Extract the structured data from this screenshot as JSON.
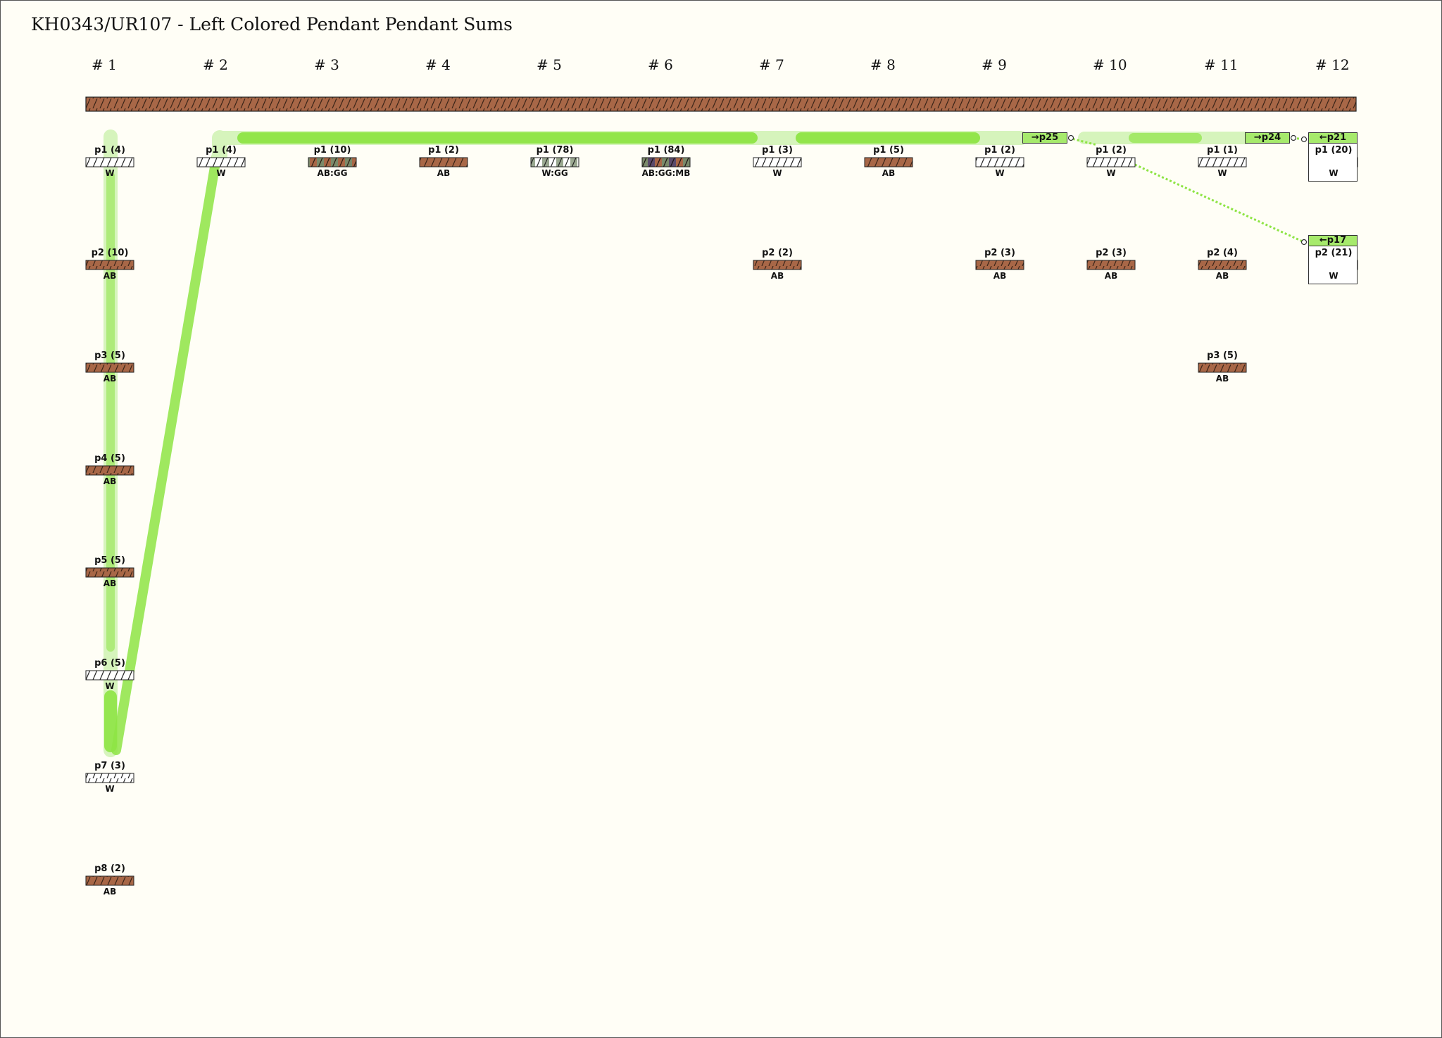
{
  "title": "KH0343/UR107 - Left Colored Pendant Pendant Sums",
  "colors": {
    "brown": "#a86747",
    "white": "#ffffff",
    "sum_green": "#8ee444",
    "sum_green_light": "#d6f4bc",
    "tag_green": "#a6ea6c",
    "background": "#fffef6"
  },
  "columns": [
    {
      "label": "# 1",
      "cords": [
        {
          "label": "p1 (4)",
          "color": "W"
        },
        {
          "label": "p2 (10)",
          "color": "AB"
        },
        {
          "label": "p3 (5)",
          "color": "AB"
        },
        {
          "label": "p4 (5)",
          "color": "AB"
        },
        {
          "label": "p5 (5)",
          "color": "AB"
        },
        {
          "label": "p6 (5)",
          "color": "W"
        },
        {
          "label": "p7 (3)",
          "color": "W"
        },
        {
          "label": "p8 (2)",
          "color": "AB"
        }
      ]
    },
    {
      "label": "# 2",
      "cords": [
        {
          "label": "p1 (4)",
          "color": "W"
        }
      ]
    },
    {
      "label": "# 3",
      "cords": [
        {
          "label": "p1 (10)",
          "color": "AB:GG"
        }
      ]
    },
    {
      "label": "# 4",
      "cords": [
        {
          "label": "p1 (2)",
          "color": "AB"
        }
      ]
    },
    {
      "label": "# 5",
      "cords": [
        {
          "label": "p1 (78)",
          "color": "W:GG"
        }
      ]
    },
    {
      "label": "# 6",
      "cords": [
        {
          "label": "p1 (84)",
          "color": "AB:GG:MB"
        }
      ]
    },
    {
      "label": "# 7",
      "cords": [
        {
          "label": "p1 (3)",
          "color": "W"
        },
        {
          "label": "p2 (2)",
          "color": "AB"
        }
      ]
    },
    {
      "label": "# 8",
      "cords": [
        {
          "label": "p1 (5)",
          "color": "AB"
        }
      ]
    },
    {
      "label": "# 9",
      "cords": [
        {
          "label": "p1 (2)",
          "color": "W"
        },
        {
          "label": "p2 (3)",
          "color": "AB"
        }
      ]
    },
    {
      "label": "# 10",
      "cords": [
        {
          "label": "p1 (2)",
          "color": "W"
        },
        {
          "label": "p2 (3)",
          "color": "AB"
        }
      ]
    },
    {
      "label": "# 11",
      "cords": [
        {
          "label": "p1 (1)",
          "color": "W"
        },
        {
          "label": "p2 (4)",
          "color": "AB"
        },
        {
          "label": "p3 (5)",
          "color": "AB"
        }
      ]
    },
    {
      "label": "# 12",
      "cords": [
        {
          "label": "p1 (20)",
          "color": "W",
          "tag": "←p21"
        },
        {
          "label": "p2 (21)",
          "color": "W",
          "tag": "←p17"
        }
      ]
    }
  ],
  "sum_tags": [
    {
      "label": "→p25"
    },
    {
      "label": "→p24"
    }
  ]
}
